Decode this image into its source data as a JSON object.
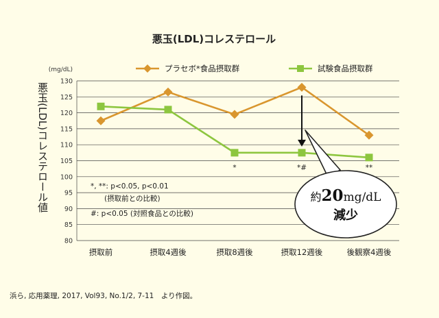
{
  "chart_data": {
    "type": "line",
    "title": "悪玉(LDL)コレステロール",
    "ylabel": "悪玉(LDL)コレステロール値",
    "yunit": "(mg/dL)",
    "ylim": [
      80,
      130
    ],
    "yticks": [
      80,
      85,
      90,
      95,
      100,
      105,
      110,
      115,
      120,
      125,
      130
    ],
    "grid": true,
    "legend_position": "top",
    "categories": [
      "摂取前",
      "摂取4週後",
      "摂取8週後",
      "摂取12週後",
      "後観察4週後"
    ],
    "series": [
      {
        "name": "プラセボ*食品摂取群",
        "color": "#d9962e",
        "marker": "diamond",
        "values": [
          117.5,
          126.5,
          119.5,
          128,
          113
        ]
      },
      {
        "name": "試験食品摂取群",
        "color": "#8dc63f",
        "marker": "square",
        "values": [
          122,
          121,
          107.5,
          107.5,
          106
        ]
      }
    ],
    "significance": [
      "",
      "",
      "*",
      "*#",
      "**"
    ],
    "notes": [
      "*, **: p<0.05, p<0.01",
      "(摂取前との比較)",
      "#: p<0.05 (対照食品との比較)"
    ],
    "callout": {
      "line1_prefix": "約",
      "line1_value": "20",
      "line1_unit": "mg/dL",
      "line2": "減少"
    }
  },
  "citation": "浜ら, 応用薬理, 2017, Vol93, No.1/2, 7-11　より作図。"
}
